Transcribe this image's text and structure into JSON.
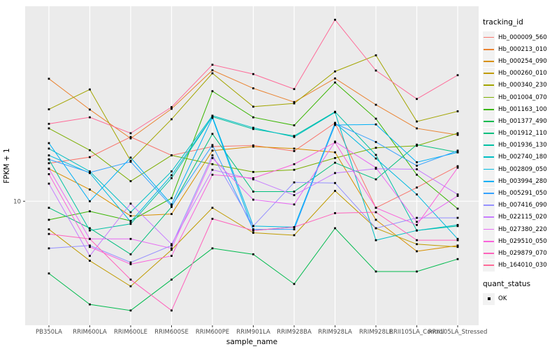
{
  "figure": {
    "bg": "#FFFFFF",
    "panel_bg": "#EBEBEB",
    "grid_color": "#FFFFFF",
    "tick_color": "#333333",
    "axis_text_color": "#4D4D4D",
    "point_color": "#000000"
  },
  "axes": {
    "x_title": "sample_name",
    "y_title": "FPKM + 1",
    "y_tick_label": "10"
  },
  "legend": {
    "tracking_title": "tracking_id",
    "quant_title": "quant_status",
    "quant_ok_label": "OK"
  },
  "chart_data": {
    "type": "line",
    "xlabel": "sample_name",
    "ylabel": "FPKM + 1",
    "y_scale": "log10",
    "y_ticks": [
      10
    ],
    "y_range_approx": [
      2.1,
      120
    ],
    "grid": "major-white-on-gray",
    "point_marker": "small-black-square",
    "legend_position": "right",
    "legend_titles": [
      "tracking_id",
      "quant_status"
    ],
    "quant_status_values": [
      "OK"
    ],
    "categories": [
      "PB350LA",
      "RRIM600LA",
      "RRIM600LE",
      "RRIM600SE",
      "RRIM600PE",
      "RRIM901LA",
      "RRIM928BA",
      "RRIM928LA",
      "RRIM928LE",
      "RRII105LA_Control",
      "RRII105LA_Stressed"
    ],
    "series": [
      {
        "name": "Hb_000009_560",
        "color": "#F8766D",
        "values": [
          16.2,
          17.5,
          22.6,
          17.9,
          20.0,
          20.3,
          18.9,
          27.0,
          9.2,
          11.9,
          15.6
        ]
      },
      {
        "name": "Hb_000213_010",
        "color": "#EA8331",
        "values": [
          47.3,
          32.0,
          22.2,
          32.3,
          52.7,
          41.9,
          35.2,
          47.5,
          34.0,
          25.2,
          23.2
        ]
      },
      {
        "name": "Hb_000254_090",
        "color": "#D89000",
        "values": [
          15.1,
          11.6,
          8.3,
          8.5,
          19.0,
          20.0,
          19.5,
          18.6,
          7.9,
          5.3,
          5.7
        ]
      },
      {
        "name": "Hb_000260_010",
        "color": "#C09B00",
        "values": [
          7.0,
          4.7,
          3.4,
          5.4,
          9.2,
          6.7,
          6.5,
          11.4,
          7.1,
          5.8,
          5.6
        ]
      },
      {
        "name": "Hb_000340_230",
        "color": "#A3A500",
        "values": [
          32.1,
          41.3,
          16.7,
          28.3,
          50.7,
          33.2,
          34.6,
          51.9,
          63.7,
          27.5,
          31.3
        ]
      },
      {
        "name": "Hb_001004_070",
        "color": "#7CAE00",
        "values": [
          25.2,
          19.1,
          12.9,
          17.9,
          16.0,
          14.5,
          14.9,
          17.3,
          19.7,
          20.2,
          23.7
        ]
      },
      {
        "name": "Hb_001163_100",
        "color": "#39B600",
        "values": [
          7.9,
          8.8,
          7.8,
          10.4,
          40.4,
          29.0,
          26.2,
          45.1,
          28.5,
          14.0,
          9.1
        ]
      },
      {
        "name": "Hb_001377_490",
        "color": "#00BB4E",
        "values": [
          4.0,
          2.7,
          2.5,
          3.7,
          5.5,
          5.1,
          3.5,
          7.1,
          4.1,
          4.1,
          4.8
        ]
      },
      {
        "name": "Hb_001912_110",
        "color": "#00BF7D",
        "values": [
          9.2,
          7.1,
          5.1,
          9.3,
          23.5,
          11.3,
          11.3,
          16.3,
          13.2,
          20.5,
          18.6
        ]
      },
      {
        "name": "Hb_001936_130",
        "color": "#00C1A3",
        "values": [
          17.0,
          6.9,
          7.5,
          13.4,
          29.2,
          25.0,
          22.9,
          31.1,
          18.0,
          6.9,
          7.3
        ]
      },
      {
        "name": "Hb_002740_180",
        "color": "#00BFC4",
        "values": [
          19.5,
          14.6,
          8.7,
          14.6,
          29.6,
          25.4,
          22.6,
          30.9,
          6.1,
          6.9,
          7.4
        ]
      },
      {
        "name": "Hb_002809_050",
        "color": "#00BAE0",
        "values": [
          17.9,
          14.3,
          7.7,
          13.9,
          29.2,
          7.3,
          7.2,
          27.0,
          17.2,
          10.9,
          6.2
        ]
      },
      {
        "name": "Hb_003994_280",
        "color": "#00B0F6",
        "values": [
          20.9,
          10.0,
          17.4,
          9.6,
          28.8,
          6.9,
          7.2,
          26.3,
          26.5,
          16.4,
          18.6
        ]
      },
      {
        "name": "Hb_005291_050",
        "color": "#35A2FF",
        "values": [
          17.0,
          14.4,
          16.5,
          9.4,
          20.4,
          7.0,
          7.0,
          26.8,
          21.2,
          15.7,
          19.0
        ]
      },
      {
        "name": "Hb_007416_090",
        "color": "#9590FF",
        "values": [
          5.5,
          5.7,
          4.6,
          5.7,
          17.9,
          7.3,
          12.7,
          12.6,
          7.1,
          8.1,
          8.1
        ]
      },
      {
        "name": "Hb_022115_020",
        "color": "#C77CFF",
        "values": [
          12.5,
          5.0,
          9.7,
          5.8,
          14.9,
          13.2,
          10.8,
          14.3,
          15.1,
          15.0,
          10.9
        ]
      },
      {
        "name": "Hb_027380_220",
        "color": "#E76BF3",
        "values": [
          15.1,
          6.2,
          6.2,
          5.5,
          17.3,
          10.2,
          9.6,
          21.3,
          15.3,
          7.7,
          10.7
        ]
      },
      {
        "name": "Hb_029510_050",
        "color": "#FA62DB",
        "values": [
          14.1,
          5.6,
          4.5,
          5.0,
          14.0,
          13.4,
          16.0,
          21.1,
          9.2,
          7.4,
          15.3
        ]
      },
      {
        "name": "Hb_029879_070",
        "color": "#FF62BC",
        "values": [
          6.6,
          6.2,
          3.7,
          2.5,
          8.0,
          6.9,
          7.2,
          8.6,
          8.7,
          6.1,
          6.1
        ]
      },
      {
        "name": "Hb_164010_030",
        "color": "#FF6A98",
        "values": [
          26.7,
          29.0,
          23.7,
          33.0,
          56.5,
          50.2,
          41.5,
          100.0,
          52.5,
          36.6,
          49.5
        ]
      }
    ]
  }
}
